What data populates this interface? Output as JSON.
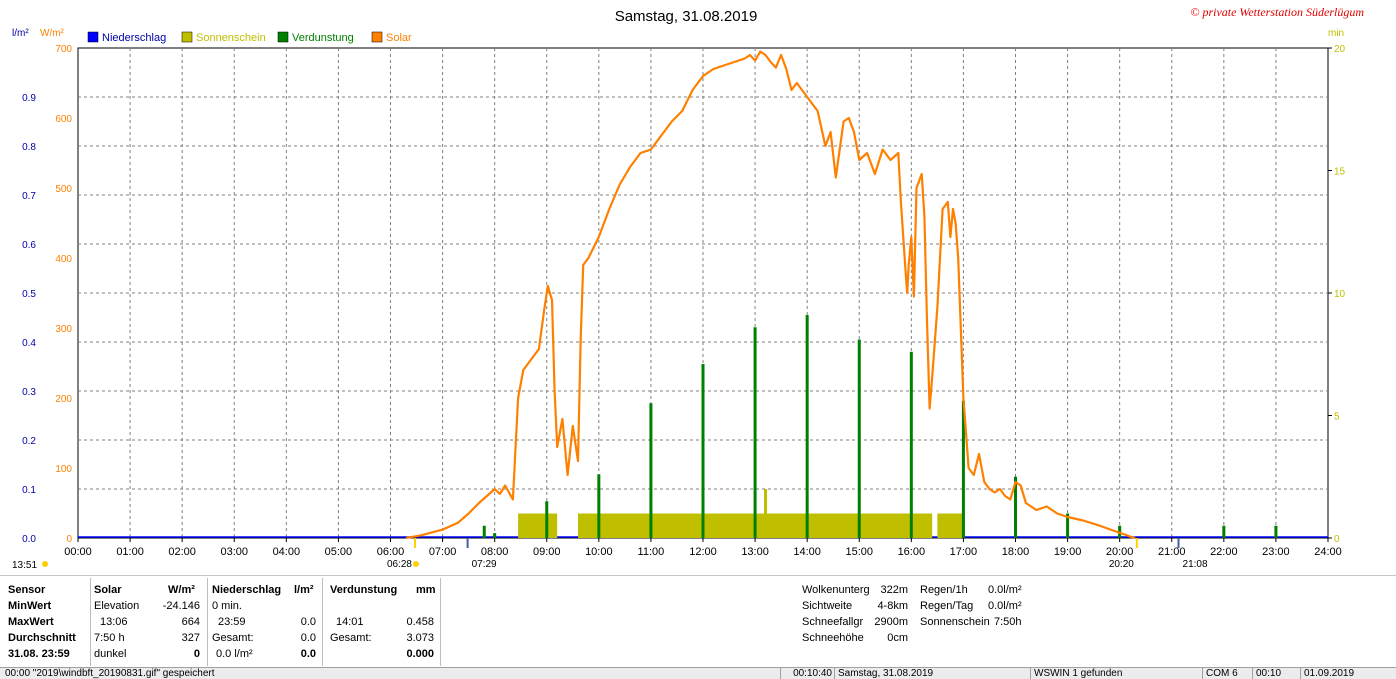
{
  "header": {
    "title": "Samstag, 31.08.2019",
    "copyright": "© private Wetterstation Süderlügum",
    "unit_left1": "l/m²",
    "unit_left2": "W/m²",
    "unit_right": "min"
  },
  "legend": [
    {
      "label": "Niederschlag",
      "color": "#0000ff"
    },
    {
      "label": "Sonnenschein",
      "color": "#bfbf00"
    },
    {
      "label": "Verdunstung",
      "color": "#008000"
    },
    {
      "label": "Solar",
      "color": "#ff8000"
    }
  ],
  "markers": {
    "bottom_left": "13:51",
    "sunrise": "06:28",
    "sunrise2": "07:29",
    "sunset": "20:20",
    "sunset2": "21:08"
  },
  "chart_data": {
    "type": "line",
    "x_ticks": [
      "00:00",
      "01:00",
      "02:00",
      "03:00",
      "04:00",
      "05:00",
      "06:00",
      "07:00",
      "08:00",
      "09:00",
      "10:00",
      "11:00",
      "12:00",
      "13:00",
      "14:00",
      "15:00",
      "16:00",
      "17:00",
      "18:00",
      "19:00",
      "20:00",
      "21:00",
      "22:00",
      "23:00",
      "24:00"
    ],
    "y_left_precip_ticks": [
      "0.0",
      "0.1",
      "0.2",
      "0.3",
      "0.4",
      "0.5",
      "0.6",
      "0.7",
      "0.8",
      "0.9"
    ],
    "y_left_solar_ticks": [
      "0",
      "100",
      "200",
      "300",
      "400",
      "500",
      "600",
      "700"
    ],
    "y_right_ticks": [
      "0",
      "5",
      "10",
      "15",
      "20"
    ],
    "ylim_solar": [
      0,
      700
    ],
    "ylim_precip": [
      0,
      1.0
    ],
    "ylim_minutes": [
      0,
      20
    ],
    "solar": {
      "name": "Solar",
      "x_hours": [
        6.3,
        6.6,
        7.0,
        7.3,
        7.5,
        7.7,
        7.85,
        8.0,
        8.1,
        8.2,
        8.35,
        8.45,
        8.55,
        8.7,
        8.85,
        8.95,
        9.02,
        9.1,
        9.15,
        9.2,
        9.3,
        9.4,
        9.5,
        9.6,
        9.65,
        9.7,
        9.8,
        9.9,
        10.0,
        10.2,
        10.4,
        10.6,
        10.8,
        11.0,
        11.2,
        11.4,
        11.6,
        11.8,
        12.0,
        12.2,
        12.4,
        12.6,
        12.8,
        12.9,
        13.0,
        13.1,
        13.2,
        13.3,
        13.4,
        13.5,
        13.6,
        13.7,
        13.8,
        14.0,
        14.2,
        14.35,
        14.45,
        14.55,
        14.7,
        14.8,
        14.9,
        15.0,
        15.15,
        15.3,
        15.45,
        15.6,
        15.75,
        15.8,
        15.9,
        15.92,
        15.95,
        16.0,
        16.05,
        16.1,
        16.2,
        16.25,
        16.3,
        16.35,
        16.4,
        16.5,
        16.6,
        16.7,
        16.75,
        16.8,
        16.85,
        16.9,
        16.95,
        17.0,
        17.05,
        17.1,
        17.2,
        17.3,
        17.4,
        17.5,
        17.6,
        17.7,
        17.8,
        17.9,
        18.0,
        18.1,
        18.2,
        18.4,
        18.6,
        18.8,
        19.0,
        19.3,
        19.6,
        19.9,
        20.1,
        20.2,
        20.3
      ],
      "values": [
        0,
        4,
        12,
        22,
        35,
        50,
        60,
        70,
        63,
        75,
        55,
        200,
        240,
        255,
        270,
        325,
        360,
        340,
        210,
        130,
        170,
        90,
        160,
        110,
        280,
        390,
        400,
        415,
        430,
        470,
        505,
        530,
        550,
        555,
        575,
        595,
        610,
        640,
        660,
        670,
        675,
        680,
        685,
        690,
        682,
        695,
        690,
        680,
        672,
        690,
        670,
        640,
        650,
        630,
        610,
        560,
        580,
        515,
        595,
        600,
        580,
        540,
        550,
        520,
        555,
        540,
        550,
        480,
        370,
        350,
        390,
        430,
        345,
        500,
        520,
        460,
        310,
        185,
        230,
        330,
        470,
        480,
        430,
        470,
        450,
        400,
        300,
        200,
        150,
        100,
        90,
        120,
        80,
        70,
        65,
        70,
        60,
        55,
        80,
        75,
        50,
        40,
        45,
        35,
        30,
        25,
        18,
        10,
        5,
        2,
        0
      ]
    },
    "evaporation_bars": {
      "name": "Verdunstung",
      "x_hours": [
        7.8,
        8.0,
        9.0,
        10.0,
        11.0,
        12.0,
        13.0,
        14.0,
        15.0,
        16.0,
        17.0,
        18.0,
        19.0,
        20.0,
        22.0,
        23.0
      ],
      "values_minutes": [
        0.5,
        0.2,
        1.5,
        2.6,
        5.5,
        7.1,
        8.6,
        9.1,
        8.1,
        7.6,
        5.6,
        2.5,
        1.0,
        0.5,
        0.5,
        0.5
      ]
    },
    "sunshine_segments": {
      "name": "Sonnenschein",
      "ranges_hours": [
        [
          8.45,
          9.2
        ],
        [
          9.6,
          16.4
        ],
        [
          16.5,
          17.0
        ]
      ],
      "value_minutes": 1.0,
      "spike": {
        "x_hours": 13.2,
        "value_minutes": 2.0
      }
    },
    "precipitation": {
      "name": "Niederschlag",
      "values": [
        0
      ]
    }
  },
  "stats": {
    "col_sensor": {
      "header": "Sensor",
      "rows": [
        "MinWert",
        "MaxWert",
        "Durchschnitt",
        "31.08. 23:59"
      ]
    },
    "col_solar": {
      "header": "Solar",
      "unit": "W/m²",
      "rows": [
        [
          "Elevation",
          "-24.146"
        ],
        [
          "13:06",
          "664"
        ],
        [
          "7:50 h",
          "327"
        ],
        [
          "dunkel",
          "0"
        ]
      ]
    },
    "col_precip": {
      "header": "Niederschlag",
      "unit": "l/m²",
      "rows": [
        [
          "0 min.",
          ""
        ],
        [
          "23:59",
          "0.0"
        ],
        [
          "Gesamt:",
          "0.0"
        ],
        [
          "0.0 l/m²",
          "0.0"
        ]
      ]
    },
    "col_evap": {
      "header": "Verdunstung",
      "unit": "mm",
      "rows": [
        [
          "",
          ""
        ],
        [
          "14:01",
          "0.458"
        ],
        [
          "Gesamt:",
          "3.073"
        ],
        [
          "",
          "0.000"
        ]
      ]
    },
    "cloud": [
      [
        "Wolkenunterg",
        "322m"
      ],
      [
        "Sichtweite",
        "4-8km"
      ],
      [
        "Schneefallgr",
        "2900m"
      ],
      [
        "Schneehöhe",
        "0cm"
      ]
    ],
    "rain": [
      [
        "Regen/1h",
        "0.0l/m²"
      ],
      [
        "Regen/Tag",
        "0.0l/m²"
      ],
      [
        "Sonnenschein",
        "7:50h"
      ]
    ]
  },
  "statusbar": [
    "00:00 \"2019\\windbft_20190831.gif\" gespeichert",
    "00:10:40",
    "Samstag, 31.08.2019",
    "WSWIN 1 gefunden",
    "COM 6",
    "00:10",
    "01.09.2019"
  ]
}
